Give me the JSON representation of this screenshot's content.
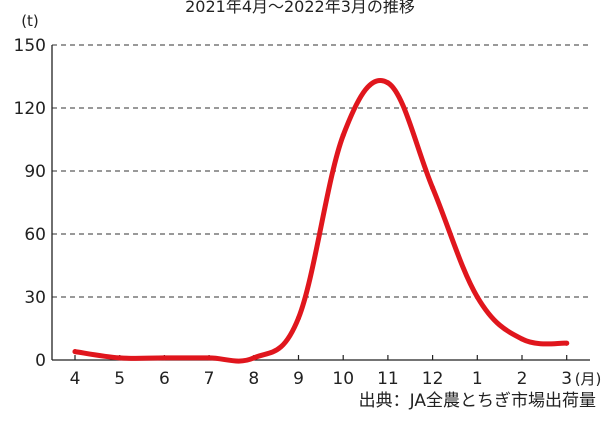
{
  "chart_data": {
    "type": "line",
    "title": "2021年4月～2022年3月の推移",
    "xlabel": "",
    "ylabel": "(t)",
    "x_unit": "(月)",
    "categories": [
      "4",
      "5",
      "6",
      "7",
      "8",
      "9",
      "10",
      "11",
      "12",
      "1",
      "2",
      "3"
    ],
    "series": [
      {
        "values": [
          4,
          1,
          1,
          1,
          1,
          20,
          107,
          132,
          82,
          30,
          10,
          8
        ]
      }
    ],
    "ylim": [
      0,
      150
    ],
    "yticks": [
      0,
      30,
      60,
      90,
      120,
      150
    ],
    "grid": true,
    "grid_style": "dashed horizontal",
    "line_color": "#e0161d",
    "legend": "none"
  },
  "source": "出典：JA全農とちぎ市場出荷量"
}
